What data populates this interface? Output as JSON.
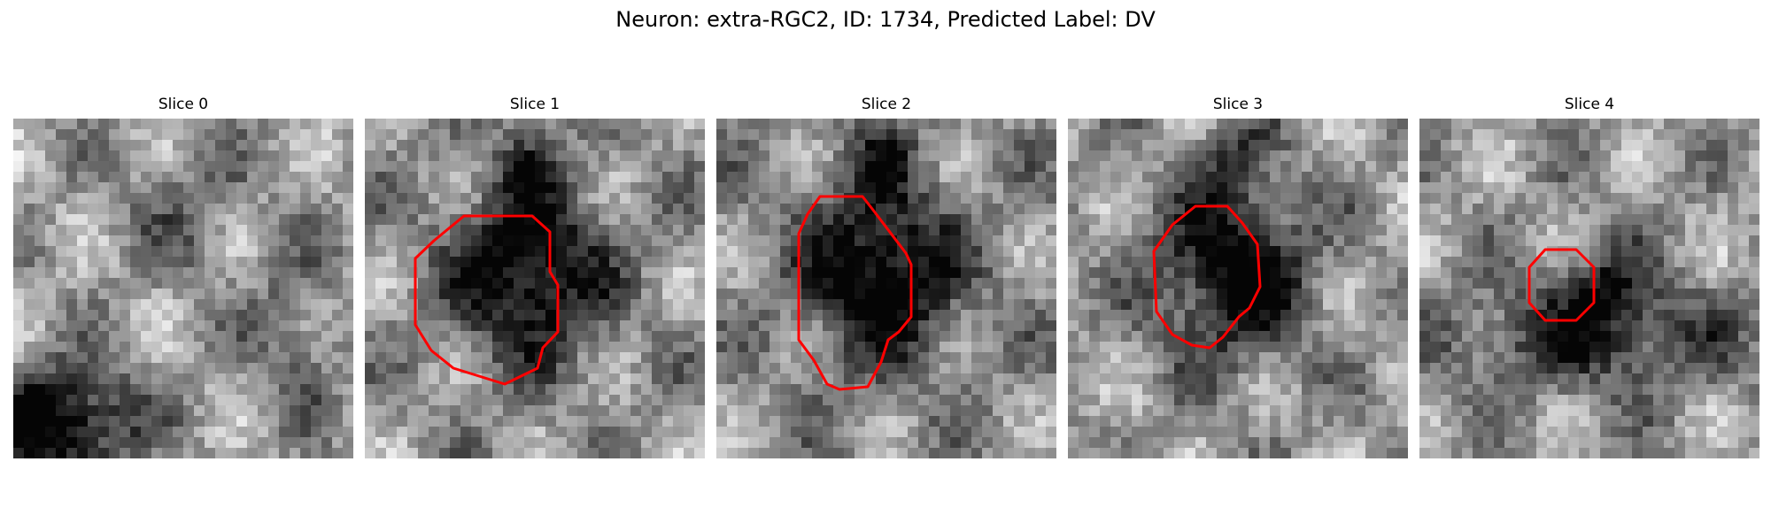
{
  "figure": {
    "title": "Neuron: extra-RGC2, ID: 1734, Predicted Label: DV"
  },
  "slices": [
    {
      "title": "Slice 0",
      "has_contour": false,
      "seed": 11,
      "bright": 0.62,
      "dark_blob": "lower-left"
    },
    {
      "title": "Slice 1",
      "has_contour": true,
      "seed": 23,
      "bright": 0.58,
      "dark_blob": "center"
    },
    {
      "title": "Slice 2",
      "has_contour": true,
      "seed": 37,
      "bright": 0.56,
      "dark_blob": "center"
    },
    {
      "title": "Slice 3",
      "has_contour": true,
      "seed": 41,
      "bright": 0.6,
      "dark_blob": "center"
    },
    {
      "title": "Slice 4",
      "has_contour": true,
      "seed": 53,
      "bright": 0.6,
      "dark_blob": "lower-band"
    }
  ],
  "style": {
    "contour_color": "#ff0000",
    "colormap": "gray"
  }
}
